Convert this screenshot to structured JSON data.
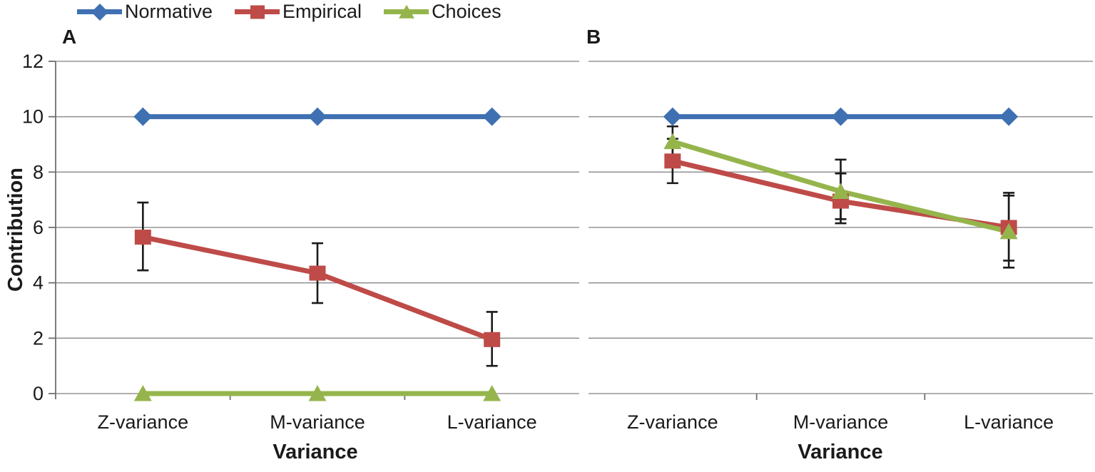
{
  "legend": {
    "position": "top-left",
    "items": [
      {
        "label": "Normative",
        "marker": "diamond",
        "color": "#3E70B2"
      },
      {
        "label": "Empirical",
        "marker": "square",
        "color": "#BE4B48"
      },
      {
        "label": "Choices",
        "marker": "triangle",
        "color": "#95B54C"
      }
    ]
  },
  "colors": {
    "gridline": "#969696",
    "axis": "#6f6f6f",
    "error_bar": "#1a1a1a",
    "text": "#1a1a1a"
  },
  "chart_data": [
    {
      "type": "line",
      "panel_label": "A",
      "title": "",
      "xlabel": "Variance",
      "ylabel": "Contribution",
      "categories": [
        "Z-variance",
        "M-variance",
        "L-variance"
      ],
      "ylim": [
        0,
        12
      ],
      "yticks": [
        0,
        2,
        4,
        6,
        8,
        10,
        12
      ],
      "grid": true,
      "show_y_tick_labels": true,
      "legend_position": "top-left-shared",
      "series": [
        {
          "name": "Normative",
          "marker": "diamond",
          "color": "#3E70B2",
          "values": [
            10,
            10,
            10
          ]
        },
        {
          "name": "Empirical",
          "marker": "square",
          "color": "#BE4B48",
          "values": [
            5.65,
            4.35,
            1.95
          ],
          "error_low": [
            4.45,
            3.27,
            1.0
          ],
          "error_high": [
            6.9,
            5.43,
            2.95
          ]
        },
        {
          "name": "Choices",
          "marker": "triangle",
          "color": "#95B54C",
          "values": [
            0,
            0,
            0
          ]
        }
      ]
    },
    {
      "type": "line",
      "panel_label": "B",
      "title": "",
      "xlabel": "Variance",
      "ylabel": "",
      "categories": [
        "Z-variance",
        "M-variance",
        "L-variance"
      ],
      "ylim": [
        0,
        12
      ],
      "yticks": [
        0,
        2,
        4,
        6,
        8,
        10,
        12
      ],
      "grid": true,
      "show_y_tick_labels": false,
      "legend_position": "top-left-shared",
      "series": [
        {
          "name": "Normative",
          "marker": "diamond",
          "color": "#3E70B2",
          "values": [
            10,
            10,
            10
          ]
        },
        {
          "name": "Empirical",
          "marker": "square",
          "color": "#BE4B48",
          "values": [
            8.4,
            6.95,
            6.0
          ],
          "error_low": [
            7.6,
            6.15,
            4.8
          ],
          "error_high": [
            9.2,
            7.95,
            7.25
          ]
        },
        {
          "name": "Choices",
          "marker": "triangle",
          "color": "#95B54C",
          "values": [
            9.1,
            7.3,
            5.85
          ],
          "error_low": [
            8.55,
            6.3,
            4.55
          ],
          "error_high": [
            9.65,
            8.45,
            7.15
          ]
        }
      ]
    }
  ]
}
